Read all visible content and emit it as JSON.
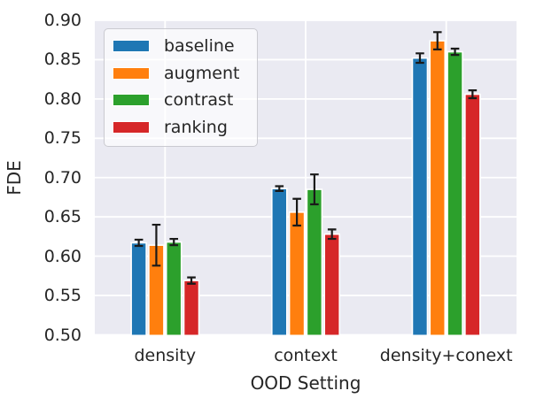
{
  "figure": {
    "background": "#ffffff",
    "plot_background": "#eaeaf2",
    "grid_color": "#ffffff",
    "text_color": "#262626",
    "errorbar_color": "#1a1a1a"
  },
  "chart_data": {
    "type": "bar",
    "title": "",
    "xlabel": "OOD Setting",
    "ylabel": "FDE",
    "categories": [
      "density",
      "context",
      "density+conext"
    ],
    "series": [
      {
        "name": "baseline",
        "color": "#1f77b4",
        "values": [
          0.617,
          0.686,
          0.852
        ],
        "errors": [
          0.004,
          0.003,
          0.006
        ]
      },
      {
        "name": "augment",
        "color": "#ff7f0e",
        "values": [
          0.614,
          0.656,
          0.874
        ],
        "errors": [
          0.026,
          0.017,
          0.011
        ]
      },
      {
        "name": "contrast",
        "color": "#2ca02c",
        "values": [
          0.618,
          0.685,
          0.86
        ],
        "errors": [
          0.004,
          0.019,
          0.004
        ]
      },
      {
        "name": "ranking",
        "color": "#d62728",
        "values": [
          0.569,
          0.628,
          0.806
        ],
        "errors": [
          0.004,
          0.006,
          0.005
        ]
      }
    ],
    "ylim": [
      0.5,
      0.9
    ],
    "yticks": [
      0.5,
      0.55,
      0.6,
      0.65,
      0.7,
      0.75,
      0.8,
      0.85,
      0.9
    ],
    "ytick_labels": [
      "0.50",
      "0.55",
      "0.60",
      "0.65",
      "0.70",
      "0.75",
      "0.80",
      "0.85",
      "0.90"
    ],
    "grid": true,
    "error_bars": true,
    "legend_position": "upper left"
  }
}
